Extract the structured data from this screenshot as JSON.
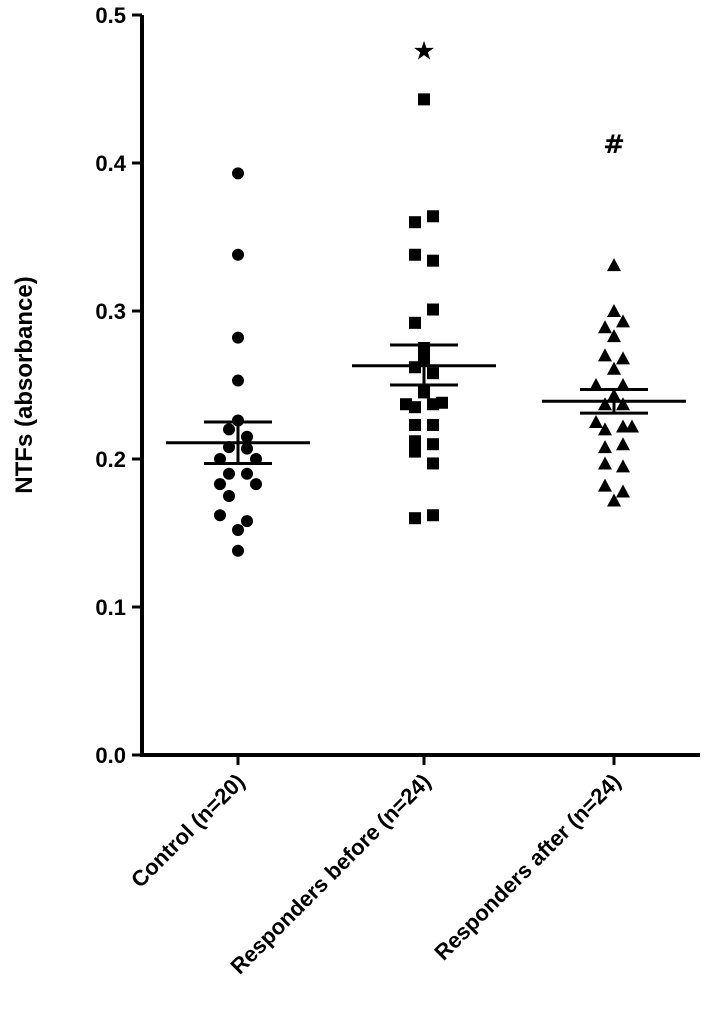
{
  "chart_data": {
    "type": "scatter",
    "title": "",
    "xlabel": "",
    "ylabel": "NTFs (absorbance)",
    "ylim": [
      0.0,
      0.5
    ],
    "yticks": [
      "0.0",
      "0.1",
      "0.2",
      "0.3",
      "0.4",
      "0.5"
    ],
    "grid": false,
    "legend": "none",
    "categories": [
      "Control (n=20)",
      "Responders before (n=24)",
      "Responders after (n=24)"
    ],
    "series": [
      {
        "marker": "circle",
        "mean": 0.211,
        "sem": [
          0.197,
          0.225
        ],
        "annotation": "",
        "points": [
          {
            "dx": 0,
            "y": 0.393
          },
          {
            "dx": 0,
            "y": 0.338
          },
          {
            "dx": 0,
            "y": 0.282
          },
          {
            "dx": 0,
            "y": 0.253
          },
          {
            "dx": 0,
            "y": 0.226
          },
          {
            "dx": -1,
            "y": 0.22
          },
          {
            "dx": 1,
            "y": 0.215
          },
          {
            "dx": -1,
            "y": 0.208
          },
          {
            "dx": 1,
            "y": 0.207
          },
          {
            "dx": -2,
            "y": 0.2
          },
          {
            "dx": 2,
            "y": 0.2
          },
          {
            "dx": -1,
            "y": 0.19
          },
          {
            "dx": 1,
            "y": 0.19
          },
          {
            "dx": -2,
            "y": 0.183
          },
          {
            "dx": 2,
            "y": 0.183
          },
          {
            "dx": -1,
            "y": 0.175
          },
          {
            "dx": -2,
            "y": 0.162
          },
          {
            "dx": 1,
            "y": 0.158
          },
          {
            "dx": 0,
            "y": 0.152
          },
          {
            "dx": 0,
            "y": 0.138
          }
        ]
      },
      {
        "marker": "square",
        "mean": 0.263,
        "sem": [
          0.25,
          0.277
        ],
        "annotation": "★",
        "points": [
          {
            "dx": 0,
            "y": 0.443
          },
          {
            "dx": 1,
            "y": 0.364
          },
          {
            "dx": -1,
            "y": 0.36
          },
          {
            "dx": -1,
            "y": 0.338
          },
          {
            "dx": 1,
            "y": 0.334
          },
          {
            "dx": 1,
            "y": 0.301
          },
          {
            "dx": -1,
            "y": 0.292
          },
          {
            "dx": 0,
            "y": 0.275
          },
          {
            "dx": 0,
            "y": 0.268
          },
          {
            "dx": -1,
            "y": 0.262
          },
          {
            "dx": 1,
            "y": 0.258
          },
          {
            "dx": 0,
            "y": 0.245
          },
          {
            "dx": -2,
            "y": 0.237
          },
          {
            "dx": -1,
            "y": 0.235
          },
          {
            "dx": 1,
            "y": 0.237
          },
          {
            "dx": 2,
            "y": 0.238
          },
          {
            "dx": -1,
            "y": 0.223
          },
          {
            "dx": 1,
            "y": 0.223
          },
          {
            "dx": -1,
            "y": 0.212
          },
          {
            "dx": -1,
            "y": 0.205
          },
          {
            "dx": 1,
            "y": 0.21
          },
          {
            "dx": 1,
            "y": 0.197
          },
          {
            "dx": -1,
            "y": 0.16
          },
          {
            "dx": 1,
            "y": 0.162
          }
        ]
      },
      {
        "marker": "triangle",
        "mean": 0.239,
        "sem": [
          0.231,
          0.247
        ],
        "annotation": "#",
        "points": [
          {
            "dx": 0,
            "y": 0.331
          },
          {
            "dx": 0,
            "y": 0.3
          },
          {
            "dx": 1,
            "y": 0.293
          },
          {
            "dx": -1,
            "y": 0.289
          },
          {
            "dx": 0,
            "y": 0.283
          },
          {
            "dx": -1,
            "y": 0.27
          },
          {
            "dx": 1,
            "y": 0.268
          },
          {
            "dx": 0,
            "y": 0.261
          },
          {
            "dx": -2,
            "y": 0.25
          },
          {
            "dx": 1,
            "y": 0.25
          },
          {
            "dx": 0,
            "y": 0.243
          },
          {
            "dx": -1,
            "y": 0.237
          },
          {
            "dx": 1,
            "y": 0.237
          },
          {
            "dx": -2,
            "y": 0.225
          },
          {
            "dx": -1,
            "y": 0.22
          },
          {
            "dx": 1,
            "y": 0.222
          },
          {
            "dx": 2,
            "y": 0.222
          },
          {
            "dx": 1,
            "y": 0.21
          },
          {
            "dx": -1,
            "y": 0.208
          },
          {
            "dx": -1,
            "y": 0.197
          },
          {
            "dx": 1,
            "y": 0.195
          },
          {
            "dx": -1,
            "y": 0.182
          },
          {
            "dx": 1,
            "y": 0.178
          },
          {
            "dx": 0,
            "y": 0.172
          }
        ]
      }
    ]
  }
}
